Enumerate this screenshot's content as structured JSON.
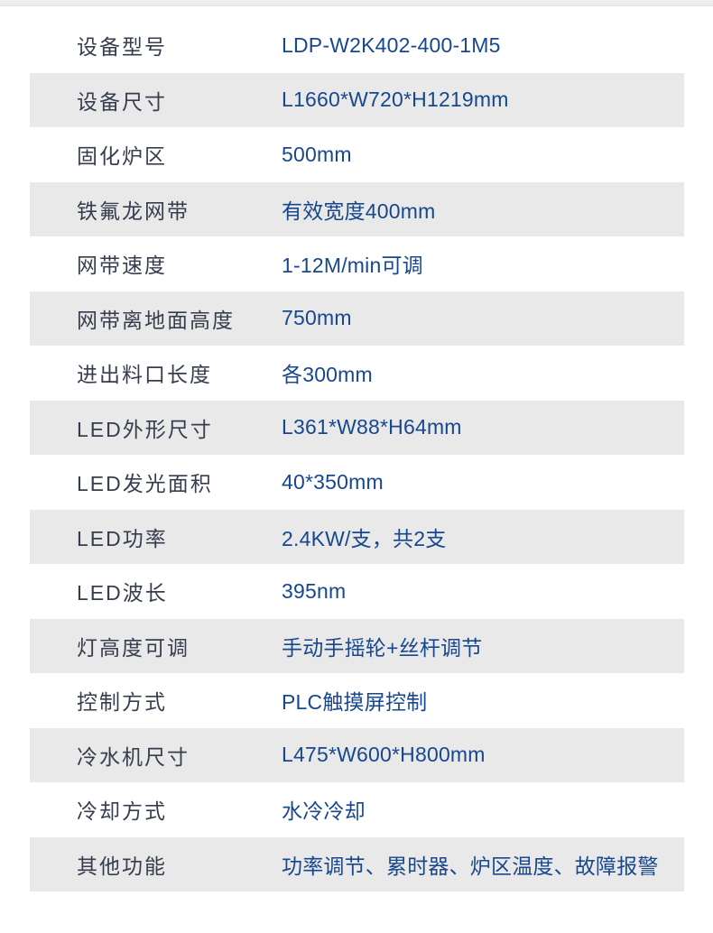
{
  "page": {
    "background_color": "#ffffff",
    "top_strip_color": "#ededed"
  },
  "table": {
    "style": {
      "row_color_odd": "#ffffff",
      "row_color_even": "#e9e9e9",
      "label_color": "#363d4d",
      "value_color": "#17478e"
    },
    "rows": [
      {
        "label": "设备型号",
        "value": "LDP-W2K402-400-1M5"
      },
      {
        "label": "设备尺寸",
        "value": "L1660*W720*H1219mm"
      },
      {
        "label": "固化炉区",
        "value": "500mm"
      },
      {
        "label": "铁氟龙网带",
        "value": "有效宽度400mm"
      },
      {
        "label": "网带速度",
        "value": "1-12M/min可调"
      },
      {
        "label": "网带离地面高度",
        "value": "750mm"
      },
      {
        "label": "进出料口长度",
        "value": "各300mm"
      },
      {
        "label": "LED外形尺寸",
        "value": "L361*W88*H64mm"
      },
      {
        "label": "LED发光面积",
        "value": "40*350mm"
      },
      {
        "label": "LED功率",
        "value": "2.4KW/支，共2支"
      },
      {
        "label": "LED波长",
        "value": "395nm"
      },
      {
        "label": "灯高度可调",
        "value": "手动手摇轮+丝杆调节"
      },
      {
        "label": "控制方式",
        "value": "PLC触摸屏控制"
      },
      {
        "label": "冷水机尺寸",
        "value": "L475*W600*H800mm"
      },
      {
        "label": "冷却方式",
        "value": "水冷冷却"
      },
      {
        "label": "其他功能",
        "value": "功率调节、累时器、炉区温度、故障报警"
      }
    ]
  }
}
